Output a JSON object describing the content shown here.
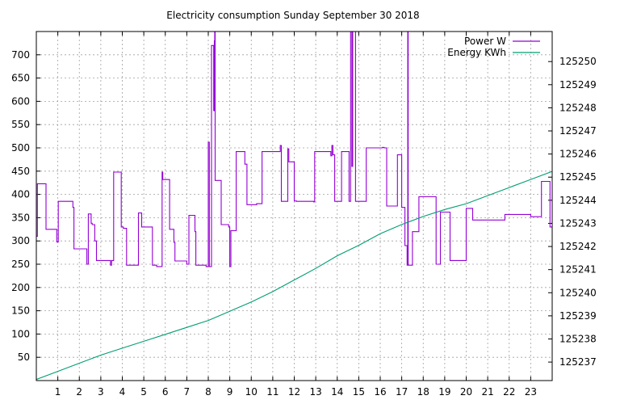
{
  "chart_data": {
    "type": "line",
    "title": "Electricity consumption Sunday September 30 2018",
    "xlabel": "",
    "ylabel": "",
    "y2label": "",
    "xlim": [
      0,
      24
    ],
    "ylim": [
      0,
      750
    ],
    "y2lim": [
      125236.2,
      125251.3
    ],
    "xticks": [
      1,
      2,
      3,
      4,
      5,
      6,
      7,
      8,
      9,
      10,
      11,
      12,
      13,
      14,
      15,
      16,
      17,
      18,
      19,
      20,
      21,
      22,
      23
    ],
    "yticks": [
      50,
      100,
      150,
      200,
      250,
      300,
      350,
      400,
      450,
      500,
      550,
      600,
      650,
      700
    ],
    "y2ticks": [
      125237,
      125238,
      125239,
      125240,
      125241,
      125242,
      125243,
      125244,
      125245,
      125246,
      125247,
      125248,
      125249,
      125250
    ],
    "grid": true,
    "legend_position": "top-right",
    "series": [
      {
        "name": "Power W",
        "axis": "left",
        "color": "#9400d3",
        "step": true,
        "x": [
          0.0,
          0.05,
          0.45,
          0.95,
          1.02,
          1.7,
          1.75,
          2.35,
          2.42,
          2.55,
          2.6,
          2.72,
          2.8,
          3.45,
          3.5,
          3.6,
          3.95,
          4.05,
          4.2,
          4.75,
          4.9,
          5.4,
          5.6,
          5.85,
          5.88,
          6.2,
          6.4,
          6.45,
          7.0,
          7.1,
          7.38,
          7.42,
          7.9,
          8.0,
          8.05,
          8.08,
          8.15,
          8.25,
          8.28,
          8.3,
          8.32,
          8.6,
          8.95,
          9.0,
          9.05,
          9.3,
          9.7,
          9.8,
          10.25,
          10.5,
          11.35,
          11.4,
          11.7,
          11.75,
          12.0,
          12.1,
          12.9,
          12.95,
          13.7,
          13.75,
          13.8,
          13.88,
          14.2,
          14.55,
          14.62,
          14.65,
          14.68,
          14.72,
          14.85,
          15.3,
          15.35,
          16.1,
          16.18,
          16.3,
          16.55,
          16.8,
          17.0,
          17.15,
          17.25,
          17.28,
          17.3,
          17.5,
          17.8,
          18.45,
          18.6,
          18.8,
          18.88,
          19.25,
          19.8,
          20.0,
          20.3,
          21.8,
          23.0,
          23.5,
          23.9
        ],
        "y": [
          310,
          423,
          325,
          298,
          385,
          372,
          283,
          250,
          358,
          338,
          335,
          300,
          258,
          248,
          258,
          448,
          330,
          327,
          248,
          360,
          330,
          248,
          245,
          448,
          432,
          325,
          297,
          257,
          250,
          355,
          320,
          248,
          245,
          512,
          245,
          245,
          720,
          580,
          730,
          760,
          430,
          335,
          330,
          245,
          322,
          492,
          465,
          378,
          380,
          492,
          505,
          385,
          498,
          470,
          386,
          385,
          384,
          492,
          483,
          505,
          485,
          385,
          492,
          385,
          760,
          765,
          460,
          760,
          385,
          385,
          500,
          501,
          500,
          375,
          375,
          485,
          372,
          290,
          248,
          760,
          248,
          320,
          395,
          395,
          250,
          362,
          362,
          258,
          258,
          370,
          345,
          357,
          352,
          428,
          330
        ]
      },
      {
        "name": "Energy KWh",
        "axis": "right",
        "color": "#009e73",
        "step": false,
        "x": [
          0,
          1,
          2,
          3,
          4,
          5,
          6,
          7,
          8,
          9,
          10,
          11,
          12,
          13,
          14,
          15,
          16,
          17,
          18,
          19,
          20,
          21,
          22,
          23,
          24
        ],
        "y": [
          125236.25,
          125236.6,
          125236.95,
          125237.3,
          125237.6,
          125237.9,
          125238.2,
          125238.5,
          125238.8,
          125239.2,
          125239.6,
          125240.05,
          125240.55,
          125241.05,
          125241.6,
          125242.05,
          125242.55,
          125242.95,
          125243.3,
          125243.6,
          125243.85,
          125244.2,
          125244.55,
          125244.9,
          125245.25
        ]
      }
    ]
  }
}
